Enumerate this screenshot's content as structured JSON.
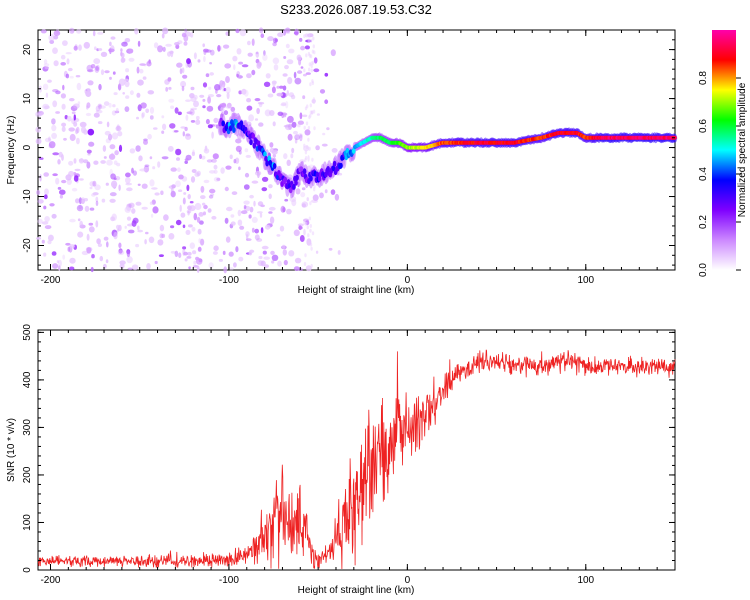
{
  "title": "S233.2026.087.19.53.C32",
  "chart_data": [
    {
      "type": "heatmap",
      "name": "spectrogram",
      "xlabel": "Height of straight line (km)",
      "ylabel": "Frequency (Hz)",
      "xlim": [
        -207,
        150
      ],
      "ylim": [
        -25,
        24
      ],
      "xticks": [
        -200,
        -100,
        0,
        100
      ],
      "yticks": [
        -20,
        -10,
        0,
        10,
        20
      ],
      "xtick_labels": [
        "-200",
        "-100",
        "0",
        "100"
      ],
      "ytick_labels": [
        "-20",
        "-10",
        "0",
        "10",
        "20"
      ],
      "colorbar": {
        "label": "Normalized spectral amplitude",
        "range": [
          0,
          1
        ],
        "ticks": [
          0.0,
          0.2,
          0.4,
          0.6,
          0.8
        ],
        "tick_labels": [
          "0.0",
          "0.2",
          "0.4",
          "0.6",
          "0.8"
        ],
        "colors": [
          "#ffffff",
          "#cc88ff",
          "#7f00ff",
          "#0000ff",
          "#00ffff",
          "#00ff00",
          "#ffff00",
          "#ff0000",
          "#ff00aa"
        ]
      },
      "signal_track": {
        "x": [
          -105,
          -100,
          -95,
          -90,
          -85,
          -80,
          -75,
          -70,
          -65,
          -60,
          -55,
          -50,
          -45,
          -40,
          -35,
          -30,
          -25,
          -20,
          -15,
          -10,
          -5,
          0,
          10,
          20,
          40,
          60,
          75,
          85,
          90,
          95,
          100,
          110,
          150
        ],
        "y": [
          5,
          4,
          5,
          3,
          1,
          -2,
          -4,
          -7,
          -8,
          -5,
          -6,
          -6,
          -5,
          -4,
          -2,
          0,
          1,
          2,
          2,
          1,
          1,
          0,
          0,
          1,
          1,
          1,
          2,
          3,
          3,
          3,
          2,
          2,
          2
        ],
        "amplitude": [
          0.25,
          0.4,
          0.45,
          0.3,
          0.35,
          0.4,
          0.4,
          0.3,
          0.3,
          0.25,
          0.3,
          0.35,
          0.3,
          0.35,
          0.4,
          0.45,
          0.5,
          0.55,
          0.6,
          0.6,
          0.65,
          0.7,
          0.75,
          0.85,
          0.9,
          0.9,
          0.85,
          0.9,
          0.9,
          0.9,
          0.85,
          0.95,
          0.95
        ]
      },
      "noise": "scattered low-amplitude speckle for x < -40 km"
    },
    {
      "type": "line",
      "name": "snr",
      "xlabel": "Height of straight line (km)",
      "ylabel": "SNR (10 * v/v)",
      "xlim": [
        -207,
        150
      ],
      "ylim": [
        0,
        505
      ],
      "xticks": [
        -200,
        -100,
        0,
        100
      ],
      "yticks": [
        0,
        100,
        200,
        300,
        400,
        500
      ],
      "xtick_labels": [
        "-200",
        "-100",
        "0",
        "100"
      ],
      "ytick_labels": [
        "0",
        "100",
        "200",
        "300",
        "400",
        "500"
      ],
      "color": "#ee2222",
      "envelope": {
        "x": [
          -207,
          -120,
          -100,
          -90,
          -85,
          -80,
          -75,
          -70,
          -65,
          -60,
          -55,
          -50,
          -45,
          -40,
          -35,
          -30,
          -25,
          -20,
          -15,
          -10,
          -5,
          0,
          5,
          10,
          15,
          20,
          25,
          30,
          40,
          50,
          60,
          70,
          80,
          90,
          100,
          110,
          120,
          130,
          140,
          150
        ],
        "y": [
          18,
          18,
          22,
          30,
          45,
          70,
          100,
          110,
          80,
          120,
          40,
          20,
          30,
          60,
          100,
          150,
          180,
          210,
          240,
          260,
          280,
          300,
          310,
          330,
          350,
          380,
          400,
          420,
          440,
          440,
          430,
          430,
          430,
          440,
          430,
          425,
          430,
          430,
          428,
          425
        ],
        "spread": [
          10,
          12,
          14,
          20,
          30,
          50,
          70,
          90,
          80,
          90,
          30,
          15,
          25,
          50,
          80,
          110,
          110,
          110,
          100,
          90,
          80,
          70,
          60,
          50,
          40,
          30,
          25,
          22,
          20,
          20,
          18,
          18,
          18,
          20,
          18,
          18,
          18,
          18,
          18,
          18
        ]
      },
      "samples": 1400
    }
  ]
}
